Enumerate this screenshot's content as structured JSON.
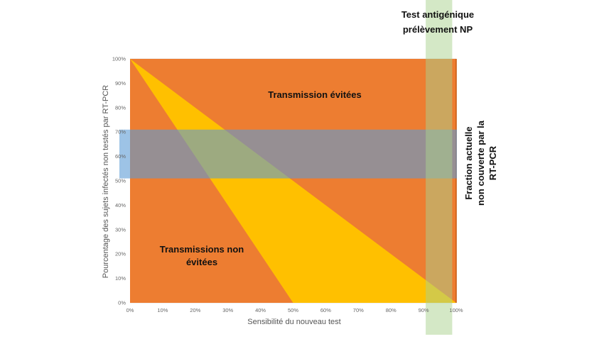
{
  "chart_data": {
    "type": "area",
    "xlabel": "Sensibilité du nouveau test",
    "ylabel": "Pourcentage des sujets infectés non testés par RT-PCR",
    "x_ticks": [
      "0%",
      "10%",
      "20%",
      "30%",
      "40%",
      "50%",
      "60%",
      "70%",
      "80%",
      "90%",
      "100%"
    ],
    "y_ticks": [
      "0%",
      "10%",
      "20%",
      "30%",
      "40%",
      "50%",
      "60%",
      "70%",
      "80%",
      "90%",
      "100%"
    ],
    "xlim": [
      0,
      100
    ],
    "ylim": [
      0,
      100
    ],
    "grid": true,
    "regions": [
      {
        "name": "Transmission évitées",
        "color": "#ED7D31",
        "points": [
          [
            0,
            100
          ],
          [
            100,
            100
          ],
          [
            100,
            0
          ],
          [
            0,
            0
          ]
        ]
      },
      {
        "name": "Transmissions non évitées",
        "color": "#FFC000",
        "points": [
          [
            0,
            100
          ],
          [
            100,
            0
          ],
          [
            50,
            0
          ]
        ]
      }
    ],
    "bands": [
      {
        "name": "Fraction actuelle non couverte par la RT-PCR",
        "axis": "y",
        "range": [
          51,
          71
        ],
        "color": "#5B9BD5",
        "opacity": 0.6
      },
      {
        "name": "Test antigénique prélèvement NP",
        "axis": "x",
        "range": [
          90,
          99
        ],
        "color": "#A9D18E",
        "opacity": 0.5
      }
    ],
    "labels": {
      "avoided": "Transmission évitées",
      "not_avoided_line1": "Transmissions non",
      "not_avoided_line2": "évitées",
      "fraction_line1": "Fraction actuelle",
      "fraction_line2": "non couverte par la",
      "fraction_line3": "RT-PCR",
      "antigen_line1": "Test antigénique",
      "antigen_line2": "prélèvement NP"
    }
  }
}
